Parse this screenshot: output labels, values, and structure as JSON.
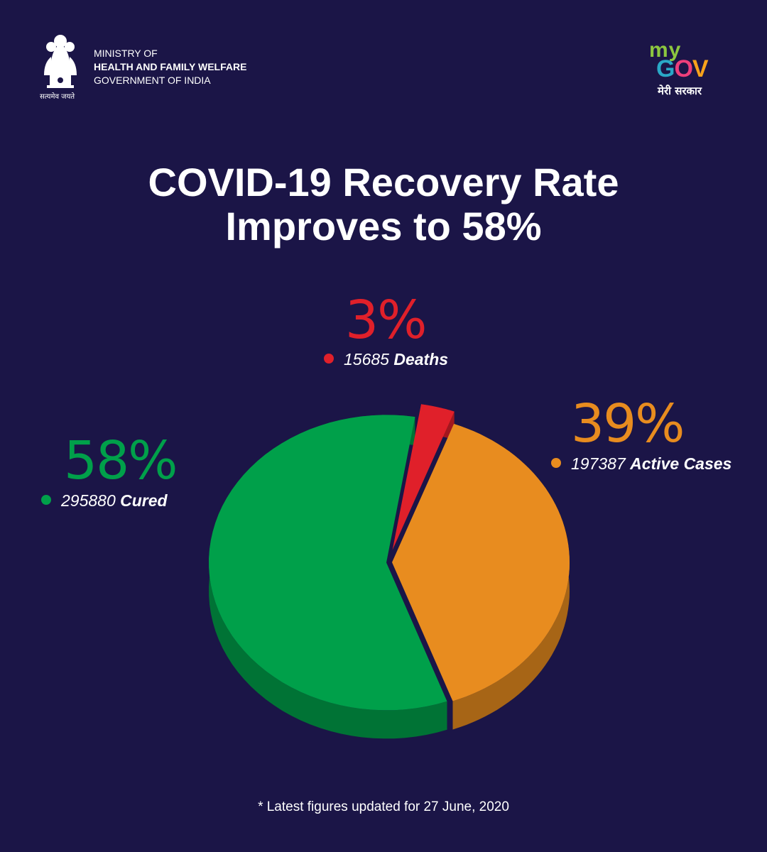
{
  "header": {
    "emblem_caption": "सत्यमेव जयते",
    "ministry_line1": "MINISTRY OF",
    "ministry_line2": "HEALTH AND FAMILY WELFARE",
    "ministry_line3": "GOVERNMENT OF INDIA",
    "logo_my": "my",
    "logo_g": "G",
    "logo_o": "O",
    "logo_v": "V",
    "logo_tagline": "मेरी सरकार"
  },
  "footnote": "* Latest figures updated for 27 June, 2020",
  "colors": {
    "background": "#1b1547",
    "cured": "#00a04a",
    "active": "#e88c1f",
    "deaths": "#e0202a"
  },
  "chart_data": {
    "type": "pie",
    "title": "COVID-19 Recovery Rate Improves to 58%",
    "title_line1": "COVID-19 Recovery Rate",
    "title_line2": "Improves to 58%",
    "slices": [
      {
        "label": "Cured",
        "value": 295880,
        "percent": "58%",
        "percent_value": 58,
        "color": "#00a04a"
      },
      {
        "label": "Deaths",
        "value": 15685,
        "percent": "3%",
        "percent_value": 3,
        "color": "#e0202a"
      },
      {
        "label": "Active Cases",
        "value": 197387,
        "percent": "39%",
        "percent_value": 39,
        "color": "#e88c1f"
      }
    ]
  }
}
